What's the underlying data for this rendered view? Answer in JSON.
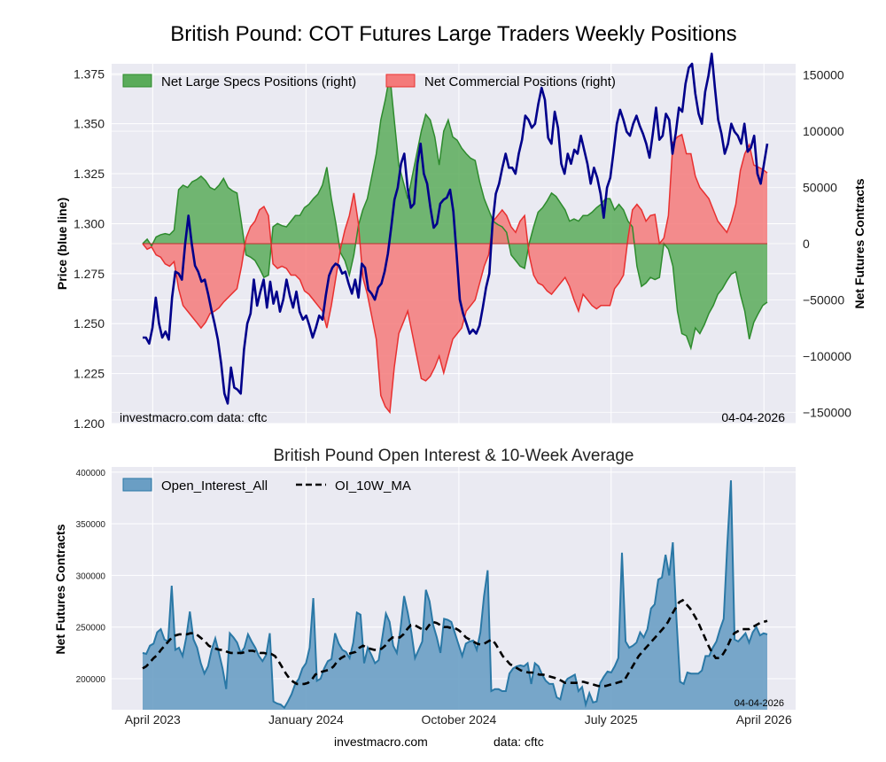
{
  "figure_title": "British Pound: COT Futures Large Traders Weekly Positions",
  "footer": {
    "site": "investmacro.com",
    "source": "data: cftc"
  },
  "colors": {
    "background": "#eaeaf2",
    "grid": "#ffffff",
    "price_line": "#00008b",
    "specs_fill": "#5aab5a",
    "specs_line": "#2e8b2e",
    "commercial_fill": "#f47a7a",
    "commercial_line": "#e83030",
    "oi_fill": "#6a9ec4",
    "oi_line": "#2a78a6",
    "ma_line": "#000000"
  },
  "chart_data": [
    {
      "type": "area",
      "title": "",
      "watermark_left": "investmacro.com    data: cftc",
      "watermark_right": "04-04-2026",
      "ylabel_left": "Price (blue line)",
      "ylabel_right": "Net Futures Contracts",
      "ylim_left": [
        1.2,
        1.38
      ],
      "ylim_right": [
        -160000,
        160000
      ],
      "yticks_left": [
        "1.200",
        "1.225",
        "1.250",
        "1.275",
        "1.300",
        "1.325",
        "1.350",
        "1.375"
      ],
      "yticks_right": [
        "150000",
        "100000",
        "50000",
        "0",
        "−50000",
        "−100000",
        "−150000"
      ],
      "x_range": [
        "2023-03-14",
        "2026-04-07"
      ],
      "grid": true,
      "legend_position": "top-left",
      "series": [
        {
          "name": "Net Large Specs Positions (right)",
          "axis": "right",
          "values": [
            0,
            4000,
            -2000,
            6000,
            8000,
            9000,
            8000,
            12000,
            48000,
            52000,
            50000,
            55000,
            57000,
            60000,
            56000,
            50000,
            48000,
            52000,
            58000,
            50000,
            47000,
            45000,
            18000,
            -10000,
            -12000,
            -15000,
            -22000,
            -30000,
            -28000,
            15000,
            18000,
            16000,
            15000,
            20000,
            25000,
            25000,
            32000,
            35000,
            40000,
            44000,
            52000,
            68000,
            40000,
            18000,
            -8000,
            -15000,
            -28000,
            -10000,
            16000,
            30000,
            40000,
            60000,
            80000,
            110000,
            128000,
            150000,
            110000,
            70000,
            55000,
            40000,
            60000,
            80000,
            100000,
            115000,
            110000,
            95000,
            70000,
            100000,
            110000,
            95000,
            92000,
            85000,
            80000,
            76000,
            74000,
            55000,
            40000,
            30000,
            20000,
            17000,
            15000,
            10000,
            -10000,
            -15000,
            -20000,
            -22000,
            0,
            15000,
            28000,
            32000,
            38000,
            45000,
            42000,
            36000,
            30000,
            20000,
            22000,
            20000,
            25000,
            25000,
            28000,
            32000,
            35000,
            40000,
            40000,
            30000,
            35000,
            30000,
            20000,
            15000,
            -20000,
            -38000,
            -35000,
            -30000,
            -32000,
            -30000,
            0,
            -5000,
            -20000,
            -60000,
            -80000,
            -82000,
            -93000,
            -75000,
            -80000,
            -72000,
            -62000,
            -55000,
            -45000,
            -40000,
            -33000,
            -27000,
            -25000,
            -45000,
            -60000,
            -85000,
            -70000,
            -62000,
            -55000,
            -52000
          ]
        },
        {
          "name": "Net Commercial Positions (right)",
          "axis": "right",
          "values": [
            0,
            -5000,
            -3000,
            -10000,
            -12000,
            -18000,
            -20000,
            -16000,
            -40000,
            -55000,
            -60000,
            -65000,
            -70000,
            -75000,
            -70000,
            -62000,
            -60000,
            -57000,
            -52000,
            -48000,
            -44000,
            -40000,
            -20000,
            5000,
            15000,
            20000,
            30000,
            33000,
            25000,
            -18000,
            -22000,
            -20000,
            -22000,
            -28000,
            -28000,
            -32000,
            -42000,
            -45000,
            -50000,
            -55000,
            -60000,
            -75000,
            -55000,
            -30000,
            -5000,
            12000,
            25000,
            45000,
            18000,
            -30000,
            -45000,
            -65000,
            -85000,
            -135000,
            -145000,
            -150000,
            -110000,
            -80000,
            -70000,
            -60000,
            -80000,
            -100000,
            -120000,
            -122000,
            -118000,
            -110000,
            -100000,
            -115000,
            -100000,
            -85000,
            -80000,
            -75000,
            -60000,
            -55000,
            -50000,
            -35000,
            -20000,
            -10000,
            20000,
            25000,
            30000,
            25000,
            15000,
            10000,
            20000,
            25000,
            -10000,
            -28000,
            -35000,
            -37000,
            -42000,
            -45000,
            -40000,
            -35000,
            -30000,
            -38000,
            -50000,
            -60000,
            -45000,
            -50000,
            -55000,
            -58000,
            -55000,
            -55000,
            -55000,
            -40000,
            -35000,
            -28000,
            5000,
            30000,
            35000,
            30000,
            20000,
            25000,
            26000,
            0,
            5000,
            25000,
            90000,
            95000,
            97000,
            80000,
            80000,
            60000,
            50000,
            45000,
            40000,
            30000,
            20000,
            15000,
            10000,
            20000,
            35000,
            65000,
            80000,
            88000,
            70000,
            68000,
            66000,
            63000
          ]
        },
        {
          "name": "Price",
          "axis": "left",
          "color_key": "price_line",
          "values": [
            1.243,
            1.243,
            1.24,
            1.248,
            1.263,
            1.25,
            1.243,
            1.246,
            1.242,
            1.263,
            1.276,
            1.275,
            1.272,
            1.29,
            1.304,
            1.29,
            1.279,
            1.276,
            1.271,
            1.272,
            1.265,
            1.257,
            1.25,
            1.242,
            1.23,
            1.215,
            1.21,
            1.228,
            1.218,
            1.217,
            1.215,
            1.237,
            1.25,
            1.255,
            1.272,
            1.259,
            1.266,
            1.272,
            1.258,
            1.271,
            1.26,
            1.266,
            1.256,
            1.262,
            1.272,
            1.264,
            1.258,
            1.266,
            1.256,
            1.252,
            1.254,
            1.249,
            1.243,
            1.248,
            1.254,
            1.252,
            1.264,
            1.274,
            1.278,
            1.28,
            1.279,
            1.275,
            1.276,
            1.27,
            1.265,
            1.272,
            1.263,
            1.28,
            1.278,
            1.267,
            1.265,
            1.262,
            1.268,
            1.27,
            1.276,
            1.285,
            1.298,
            1.312,
            1.318,
            1.33,
            1.335,
            1.318,
            1.308,
            1.31,
            1.33,
            1.34,
            1.325,
            1.32,
            1.308,
            1.298,
            1.3,
            1.31,
            1.312,
            1.313,
            1.317,
            1.306,
            1.285,
            1.262,
            1.255,
            1.25,
            1.245,
            1.247,
            1.245,
            1.249,
            1.258,
            1.268,
            1.275,
            1.3,
            1.315,
            1.32,
            1.328,
            1.335,
            1.328,
            1.328,
            1.325,
            1.335,
            1.342,
            1.354,
            1.352,
            1.348,
            1.35,
            1.36,
            1.368,
            1.362,
            1.343,
            1.34,
            1.356,
            1.348,
            1.33,
            1.325,
            1.335,
            1.33,
            1.337,
            1.335,
            1.344,
            1.337,
            1.33,
            1.32,
            1.328,
            1.323,
            1.315,
            1.303,
            1.318,
            1.323,
            1.336,
            1.35,
            1.357,
            1.352,
            1.346,
            1.344,
            1.35,
            1.354,
            1.349,
            1.345,
            1.34,
            1.333,
            1.345,
            1.358,
            1.342,
            1.344,
            1.355,
            1.352,
            1.335,
            1.345,
            1.358,
            1.356,
            1.37,
            1.378,
            1.38,
            1.365,
            1.355,
            1.35,
            1.366,
            1.374,
            1.385,
            1.368,
            1.352,
            1.345,
            1.335,
            1.34,
            1.35,
            1.346,
            1.344,
            1.34,
            1.35,
            1.336,
            1.338,
            1.344,
            1.325,
            1.32,
            1.33,
            1.34
          ]
        }
      ]
    },
    {
      "type": "area",
      "title": "British Pound Open Interest & 10-Week Average",
      "watermark_right": "04-04-2026",
      "ylabel": "Net Futures Contracts",
      "ylim": [
        170000,
        405000
      ],
      "yticks": [
        "200000",
        "250000",
        "300000",
        "350000",
        "400000"
      ],
      "x_range": [
        "2023-03-14",
        "2026-04-07"
      ],
      "xticks": [
        "April 2023",
        "January 2024",
        "October 2024",
        "July 2025",
        "April 2026"
      ],
      "grid": true,
      "legend_position": "top-left",
      "series": [
        {
          "name": "Open_Interest_All",
          "values": [
            225000,
            224000,
            232000,
            234000,
            245000,
            248000,
            238000,
            236000,
            290000,
            228000,
            230000,
            222000,
            240000,
            265000,
            238000,
            230000,
            215000,
            205000,
            212000,
            228000,
            239000,
            225000,
            210000,
            190000,
            244000,
            240000,
            235000,
            225000,
            230000,
            243000,
            236000,
            230000,
            222000,
            217000,
            223000,
            244000,
            178000,
            176000,
            175000,
            172000,
            178000,
            185000,
            195000,
            200000,
            210000,
            215000,
            230000,
            278000,
            198000,
            200000,
            210000,
            217000,
            219000,
            244000,
            234000,
            228000,
            226000,
            220000,
            235000,
            264000,
            262000,
            215000,
            230000,
            223000,
            215000,
            218000,
            240000,
            263000,
            255000,
            232000,
            225000,
            248000,
            280000,
            264000,
            245000,
            220000,
            228000,
            236000,
            286000,
            275000,
            252000,
            240000,
            225000,
            258000,
            257000,
            255000,
            244000,
            233000,
            222000,
            234000,
            236000,
            237000,
            228000,
            245000,
            280000,
            305000,
            188000,
            190000,
            190000,
            188000,
            188000,
            205000,
            210000,
            212000,
            213000,
            212000,
            215000,
            195000,
            215000,
            212000,
            204000,
            198000,
            195000,
            195000,
            182000,
            180000,
            195000,
            200000,
            202000,
            204000,
            188000,
            192000,
            175000,
            186000,
            177000,
            178000,
            196000,
            202000,
            207000,
            206000,
            212000,
            220000,
            322000,
            236000,
            230000,
            232000,
            235000,
            245000,
            240000,
            248000,
            268000,
            272000,
            296000,
            298000,
            320000,
            300000,
            332000,
            258000,
            197000,
            195000,
            206000,
            205000,
            205000,
            205000,
            208000,
            222000,
            222000,
            230000,
            236000,
            248000,
            258000,
            330000,
            392000,
            238000,
            236000,
            240000,
            244000,
            235000,
            245000,
            250000,
            242000,
            244000,
            243000
          ]
        },
        {
          "name": "OI_10W_MA",
          "values": [
            210000,
            212000,
            216000,
            220000,
            223000,
            228000,
            232000,
            236000,
            240000,
            242000,
            243000,
            243000,
            243000,
            244000,
            244000,
            242000,
            239000,
            236000,
            232000,
            230000,
            229000,
            228000,
            228000,
            226000,
            225000,
            225000,
            225000,
            225000,
            226000,
            227000,
            227000,
            226000,
            225000,
            225000,
            224000,
            224000,
            222000,
            217000,
            211000,
            205000,
            200000,
            197000,
            195000,
            195000,
            195000,
            196000,
            199000,
            204000,
            206000,
            207000,
            208000,
            209000,
            212000,
            217000,
            220000,
            222000,
            224000,
            225000,
            226000,
            230000,
            232000,
            230000,
            229000,
            228000,
            228000,
            229000,
            232000,
            237000,
            240000,
            240000,
            240000,
            243000,
            248000,
            252000,
            252000,
            250000,
            248000,
            247000,
            252000,
            255000,
            254000,
            252000,
            250000,
            250000,
            249000,
            249000,
            247000,
            244000,
            240000,
            238000,
            236000,
            234000,
            233000,
            234000,
            236000,
            238000,
            234000,
            228000,
            222000,
            218000,
            214000,
            212000,
            210000,
            208000,
            207000,
            206000,
            206000,
            205000,
            204000,
            204000,
            203000,
            202000,
            201000,
            200000,
            198000,
            196000,
            196000,
            196000,
            196000,
            197000,
            197000,
            196000,
            195000,
            194000,
            193000,
            193000,
            193000,
            194000,
            195000,
            196000,
            197000,
            198000,
            204000,
            210000,
            216000,
            222000,
            226000,
            230000,
            234000,
            238000,
            242000,
            246000,
            250000,
            255000,
            262000,
            268000,
            274000,
            276000,
            272000,
            268000,
            262000,
            256000,
            248000,
            240000,
            232000,
            225000,
            220000,
            220000,
            224000,
            230000,
            238000,
            244000,
            246000,
            248000,
            248000,
            248000,
            250000,
            252000,
            254000,
            255000,
            256000
          ]
        }
      ]
    }
  ]
}
